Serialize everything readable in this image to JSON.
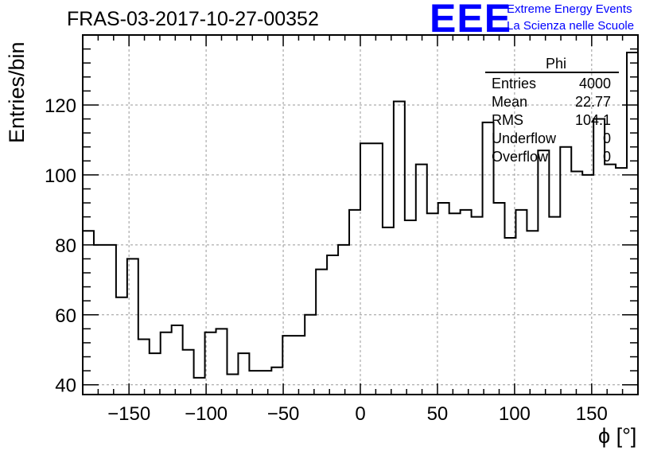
{
  "header": {
    "title": "FRAS-03-2017-10-27-00352",
    "logo": "EEE",
    "logo_line1": "Extreme Energy Events",
    "logo_line2": "La Scienza nelle Scuole"
  },
  "stats": {
    "title": "Phi",
    "rows": [
      {
        "key": "Entries",
        "value": "4000"
      },
      {
        "key": "Mean",
        "value": "22.77"
      },
      {
        "key": "RMS",
        "value": "104.1"
      },
      {
        "key": "Underflow",
        "value": "0"
      },
      {
        "key": "Overflow",
        "value": "0"
      }
    ]
  },
  "chart_data": {
    "type": "histogram",
    "title": "FRAS-03-2017-10-27-00352",
    "xlabel": "ϕ [°]",
    "ylabel": "Entries/bin",
    "xlim": [
      -180,
      180
    ],
    "ylim": [
      37.2,
      140
    ],
    "bin_width": 7.2,
    "grid": true,
    "xticks": [
      -150,
      -100,
      -50,
      0,
      50,
      100,
      150
    ],
    "xtick_labels": [
      "−150",
      "−100",
      "−50",
      "0",
      "50",
      "100",
      "150"
    ],
    "yticks": [
      40,
      60,
      80,
      100,
      120
    ],
    "ytick_labels": [
      "40",
      "60",
      "80",
      "100",
      "120"
    ],
    "values": [
      84,
      80,
      80,
      65,
      76,
      53,
      49,
      55,
      57,
      50,
      42,
      55,
      56,
      43,
      49,
      44,
      44,
      45,
      54,
      54,
      60,
      73,
      77,
      80,
      90,
      109,
      109,
      85,
      121,
      87,
      103,
      89,
      92,
      89,
      90,
      88,
      115,
      92,
      82,
      90,
      84,
      107,
      88,
      108,
      101,
      100,
      116,
      103,
      102,
      135
    ]
  }
}
